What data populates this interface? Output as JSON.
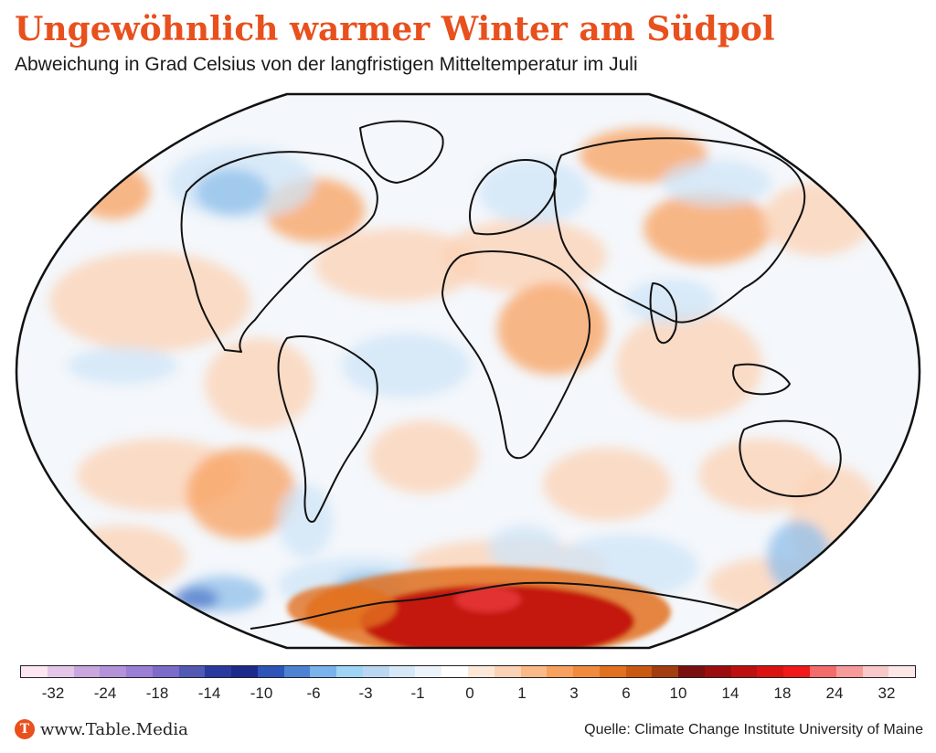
{
  "header": {
    "title": "Ungewöhnlich warmer Winter am Südpol",
    "subtitle": "Abweichung in Grad Celsius von der langfristigen Mitteltemperatur im Juli"
  },
  "legend": {
    "colors": [
      "#fbe6f2",
      "#e3c6e8",
      "#c9a6dd",
      "#b292d9",
      "#9b7ed5",
      "#7a6cc8",
      "#5159b5",
      "#2a3a9e",
      "#1c2a8a",
      "#2d54b8",
      "#4d82d2",
      "#79b2ec",
      "#9fd4f5",
      "#bad7f2",
      "#d6e8f8",
      "#ecf4fb",
      "#ffffff",
      "#fde8d8",
      "#fcd2b4",
      "#fab987",
      "#f8a05e",
      "#f08a3c",
      "#e2711f",
      "#c95812",
      "#a33d10",
      "#7a1010",
      "#9c0e0e",
      "#bf1010",
      "#d91212",
      "#f01818",
      "#f36b6b",
      "#f79a9a",
      "#f9c8c8",
      "#fde6e6"
    ],
    "ticks": [
      "-32",
      "-24",
      "-18",
      "-14",
      "-10",
      "-6",
      "-3",
      "-1",
      "0",
      "1",
      "3",
      "6",
      "10",
      "14",
      "18",
      "24",
      "32"
    ]
  },
  "map": {
    "projection": "Winkel Tripel",
    "palette": {
      "ocean_neutral": "#f4f7fb",
      "warm_light": "#fcd2b4",
      "warm_mid": "#f8a05e",
      "warm_strong": "#e2711f",
      "hot": "#c21410",
      "hot_core": "#e23030",
      "cold_light": "#cfe4f7",
      "cold_mid": "#8fbfea",
      "cold_strong": "#5078c8",
      "coast": "#111111"
    }
  },
  "footer": {
    "brand_initial": "T",
    "brand_url": "www.Table.Media",
    "source": "Quelle: Climate Change Institute University of Maine"
  }
}
